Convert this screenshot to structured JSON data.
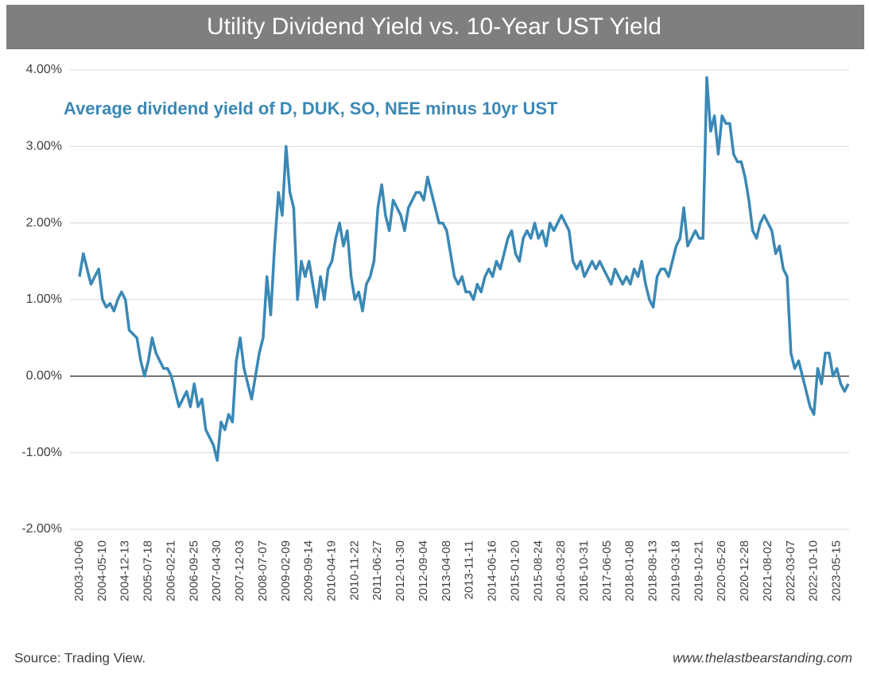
{
  "chart_data": {
    "type": "line",
    "title": "Utility Dividend Yield vs. 10-Year UST Yield",
    "annotation": "Average dividend yield of D, DUK, SO, NEE minus 10yr UST",
    "source": "Source: Trading View.",
    "credit": "www.thelastbearstanding.com",
    "color": "#3a88b5",
    "grid": true,
    "ylim": [
      -2,
      4
    ],
    "yticks": [
      {
        "value": -2,
        "label": "-2.00%"
      },
      {
        "value": -1,
        "label": "-1.00%"
      },
      {
        "value": 0,
        "label": "0.00%"
      },
      {
        "value": 1,
        "label": "1.00%"
      },
      {
        "value": 2,
        "label": "2.00%"
      },
      {
        "value": 3,
        "label": "3.00%"
      },
      {
        "value": 4,
        "label": "4.00%"
      }
    ],
    "categories": [
      "2003-10-06",
      null,
      null,
      null,
      null,
      null,
      "2004-05-10",
      null,
      null,
      null,
      null,
      null,
      "2004-12-13",
      null,
      null,
      null,
      null,
      null,
      "2005-07-18",
      null,
      null,
      null,
      null,
      null,
      "2006-02-21",
      null,
      null,
      null,
      null,
      null,
      "2006-09-25",
      null,
      null,
      null,
      null,
      null,
      "2007-04-30",
      null,
      null,
      null,
      null,
      null,
      "2007-12-03",
      null,
      null,
      null,
      null,
      null,
      "2008-07-07",
      null,
      null,
      null,
      null,
      null,
      "2009-02-09",
      null,
      null,
      null,
      null,
      null,
      "2009-09-14",
      null,
      null,
      null,
      null,
      null,
      "2010-04-19",
      null,
      null,
      null,
      null,
      null,
      "2010-11-22",
      null,
      null,
      null,
      null,
      null,
      "2011-06-27",
      null,
      null,
      null,
      null,
      null,
      "2012-01-30",
      null,
      null,
      null,
      null,
      null,
      "2012-09-04",
      null,
      null,
      null,
      null,
      null,
      "2013-04-08",
      null,
      null,
      null,
      null,
      null,
      "2013-11-11",
      null,
      null,
      null,
      null,
      null,
      "2014-06-16",
      null,
      null,
      null,
      null,
      null,
      "2015-01-20",
      null,
      null,
      null,
      null,
      null,
      "2015-08-24",
      null,
      null,
      null,
      null,
      null,
      "2016-03-28",
      null,
      null,
      null,
      null,
      null,
      "2016-10-31",
      null,
      null,
      null,
      null,
      null,
      "2017-06-05",
      null,
      null,
      null,
      null,
      null,
      "2018-01-08",
      null,
      null,
      null,
      null,
      null,
      "2018-08-13",
      null,
      null,
      null,
      null,
      null,
      "2019-03-18",
      null,
      null,
      null,
      null,
      null,
      "2019-10-21",
      null,
      null,
      null,
      null,
      null,
      "2020-05-26",
      null,
      null,
      null,
      null,
      null,
      "2020-12-28",
      null,
      null,
      null,
      null,
      null,
      "2021-08-02",
      null,
      null,
      null,
      null,
      null,
      "2022-03-07",
      null,
      null,
      null,
      null,
      null,
      "2022-10-10",
      null,
      null,
      null,
      null,
      null,
      "2023-05-15",
      null,
      null,
      null
    ],
    "values": [
      1.3,
      1.6,
      1.4,
      1.2,
      1.3,
      1.4,
      1.0,
      0.9,
      0.95,
      0.85,
      1.0,
      1.1,
      1.0,
      0.6,
      0.55,
      0.5,
      0.2,
      0.0,
      0.2,
      0.5,
      0.3,
      0.2,
      0.1,
      0.1,
      0.0,
      -0.2,
      -0.4,
      -0.3,
      -0.2,
      -0.4,
      -0.1,
      -0.4,
      -0.3,
      -0.7,
      -0.8,
      -0.9,
      -1.1,
      -0.6,
      -0.7,
      -0.5,
      -0.6,
      0.2,
      0.5,
      0.1,
      -0.1,
      -0.3,
      0.0,
      0.3,
      0.5,
      1.3,
      0.8,
      1.7,
      2.4,
      2.1,
      3.0,
      2.4,
      2.2,
      1.0,
      1.5,
      1.3,
      1.5,
      1.2,
      0.9,
      1.3,
      1.0,
      1.4,
      1.5,
      1.8,
      2.0,
      1.7,
      1.9,
      1.3,
      1.0,
      1.1,
      0.85,
      1.2,
      1.3,
      1.5,
      2.2,
      2.5,
      2.1,
      1.9,
      2.3,
      2.2,
      2.1,
      1.9,
      2.2,
      2.3,
      2.4,
      2.4,
      2.3,
      2.6,
      2.4,
      2.2,
      2.0,
      2.0,
      1.9,
      1.6,
      1.3,
      1.2,
      1.3,
      1.1,
      1.1,
      1.0,
      1.2,
      1.1,
      1.3,
      1.4,
      1.3,
      1.5,
      1.4,
      1.6,
      1.8,
      1.9,
      1.6,
      1.5,
      1.8,
      1.9,
      1.8,
      2.0,
      1.8,
      1.9,
      1.7,
      2.0,
      1.9,
      2.0,
      2.1,
      2.0,
      1.9,
      1.5,
      1.4,
      1.5,
      1.3,
      1.4,
      1.5,
      1.4,
      1.5,
      1.4,
      1.3,
      1.2,
      1.4,
      1.3,
      1.2,
      1.3,
      1.2,
      1.4,
      1.3,
      1.5,
      1.2,
      1.0,
      0.9,
      1.3,
      1.4,
      1.4,
      1.3,
      1.5,
      1.7,
      1.8,
      2.2,
      1.7,
      1.8,
      1.9,
      1.8,
      1.8,
      3.9,
      3.2,
      3.4,
      2.9,
      3.4,
      3.3,
      3.3,
      2.9,
      2.8,
      2.8,
      2.6,
      2.3,
      1.9,
      1.8,
      2.0,
      2.1,
      2.0,
      1.9,
      1.6,
      1.7,
      1.4,
      1.3,
      0.3,
      0.1,
      0.2,
      0.0,
      -0.2,
      -0.4,
      -0.5,
      0.1,
      -0.1,
      0.3,
      0.3,
      0.0,
      0.1,
      -0.1,
      -0.2,
      -0.1
    ]
  }
}
